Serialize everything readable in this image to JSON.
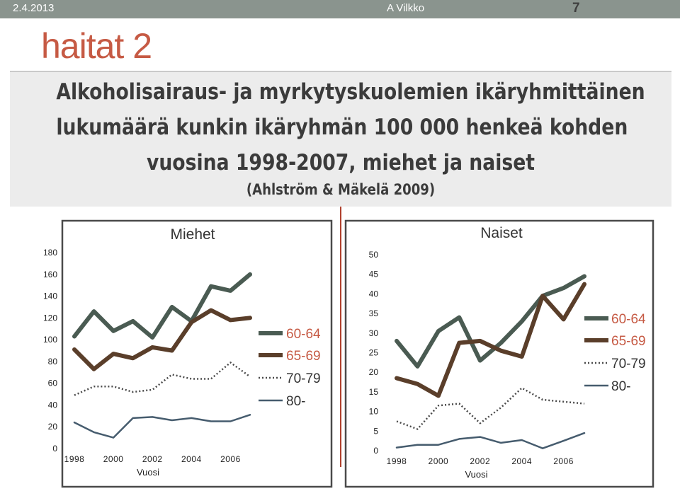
{
  "header": {
    "date": "2.4.2013",
    "author": "A Vilkko",
    "page_number": "7"
  },
  "slide_title": "haitat 2",
  "caption": {
    "lines": [
      "Alkoholisairaus- ja myrkytyskuolemien ikäryhmittäinen",
      "lukumäärä kunkin ikäryhmän 100 000 henkeä kohden",
      "vuosina 1998-2007, miehet ja naiset"
    ],
    "citation": "(Ahlström & Mäkelä 2009)"
  },
  "colors": {
    "series_60_64": "#4a5b52",
    "series_65_69": "#5a3e2a",
    "series_70_79": "#4a4a4a",
    "series_80": "#465c6e",
    "legend_text_accent": "#c65a44",
    "divider": "#b0412e"
  },
  "chart_data": [
    {
      "type": "line",
      "title": "Miehet",
      "xlabel": "Vuosi",
      "ylabel": "",
      "x": [
        1998,
        1999,
        2000,
        2001,
        2002,
        2003,
        2004,
        2005,
        2006,
        2007
      ],
      "x_tick_labels": [
        "1998",
        "2000",
        "2002",
        "2004",
        "2006"
      ],
      "ylim": [
        0,
        180
      ],
      "y_ticks": [
        0,
        20,
        40,
        60,
        80,
        100,
        120,
        140,
        160,
        180
      ],
      "legend_position": "right",
      "series": [
        {
          "name": "60-64",
          "style": "thick",
          "values": [
            103,
            126,
            108,
            117,
            102,
            130,
            117,
            149,
            145,
            160
          ]
        },
        {
          "name": "65-69",
          "style": "thick",
          "values": [
            91,
            73,
            87,
            83,
            93,
            90,
            116,
            127,
            118,
            120
          ]
        },
        {
          "name": "70-79",
          "style": "dotted",
          "values": [
            49,
            57,
            57,
            52,
            54,
            68,
            64,
            64,
            79,
            66
          ]
        },
        {
          "name": "80-",
          "style": "thin",
          "values": [
            24,
            15,
            10,
            28,
            29,
            26,
            28,
            25,
            25,
            31
          ]
        }
      ]
    },
    {
      "type": "line",
      "title": "Naiset",
      "xlabel": "Vuosi",
      "ylabel": "",
      "x": [
        1998,
        1999,
        2000,
        2001,
        2002,
        2003,
        2004,
        2005,
        2006,
        2007
      ],
      "x_tick_labels": [
        "1998",
        "2000",
        "2002",
        "2004",
        "2006"
      ],
      "ylim": [
        0,
        50
      ],
      "y_ticks": [
        0,
        5,
        10,
        15,
        20,
        25,
        30,
        35,
        40,
        45,
        50
      ],
      "legend_position": "right",
      "series": [
        {
          "name": "60-64",
          "style": "thick",
          "values": [
            28,
            21.5,
            30.5,
            34,
            23,
            27.5,
            33,
            39.5,
            41.5,
            44.5
          ]
        },
        {
          "name": "65-69",
          "style": "thick",
          "values": [
            18.5,
            17,
            14,
            27.5,
            28,
            25.5,
            24,
            39.5,
            33.5,
            42.5
          ]
        },
        {
          "name": "70-79",
          "style": "dotted",
          "values": [
            7.5,
            5.5,
            11.5,
            12,
            7,
            11,
            16,
            13,
            12.5,
            12
          ]
        },
        {
          "name": "80-",
          "style": "thin",
          "values": [
            0.8,
            1.5,
            1.5,
            3,
            3.5,
            2,
            2.7,
            0.6,
            2.5,
            4.5
          ]
        }
      ]
    }
  ]
}
